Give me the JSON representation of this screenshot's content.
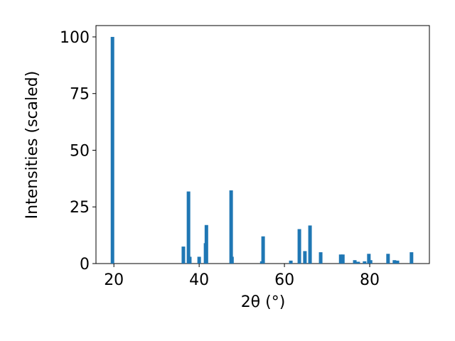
{
  "chart_data": {
    "type": "bar",
    "x_label": "2θ (°)",
    "y_label": "Intensities (scaled)",
    "color": "#1f77b4",
    "x": [
      19.67,
      36.3,
      37.5,
      37.8,
      40.0,
      41.5,
      41.7,
      47.5,
      47.7,
      54.7,
      55.0,
      61.5,
      63.5,
      64.8,
      66.0,
      68.5,
      73.2,
      73.7,
      76.5,
      77.3,
      78.8,
      79.8,
      80.2,
      84.3,
      85.8,
      86.5,
      89.8
    ],
    "values": [
      100,
      7.5,
      31.8,
      3,
      3,
      9,
      17,
      32.3,
      3,
      1,
      12,
      1.3,
      15.2,
      5.5,
      16.8,
      5,
      4,
      4,
      1.5,
      0.8,
      1,
      4.3,
      1.5,
      4.3,
      1.5,
      1.3,
      5
    ],
    "xlim": [
      15.8,
      94.0
    ],
    "ylim": [
      0,
      105
    ],
    "xticks": [
      20,
      40,
      60,
      80
    ],
    "yticks": [
      0,
      25,
      50,
      75,
      100
    ]
  }
}
